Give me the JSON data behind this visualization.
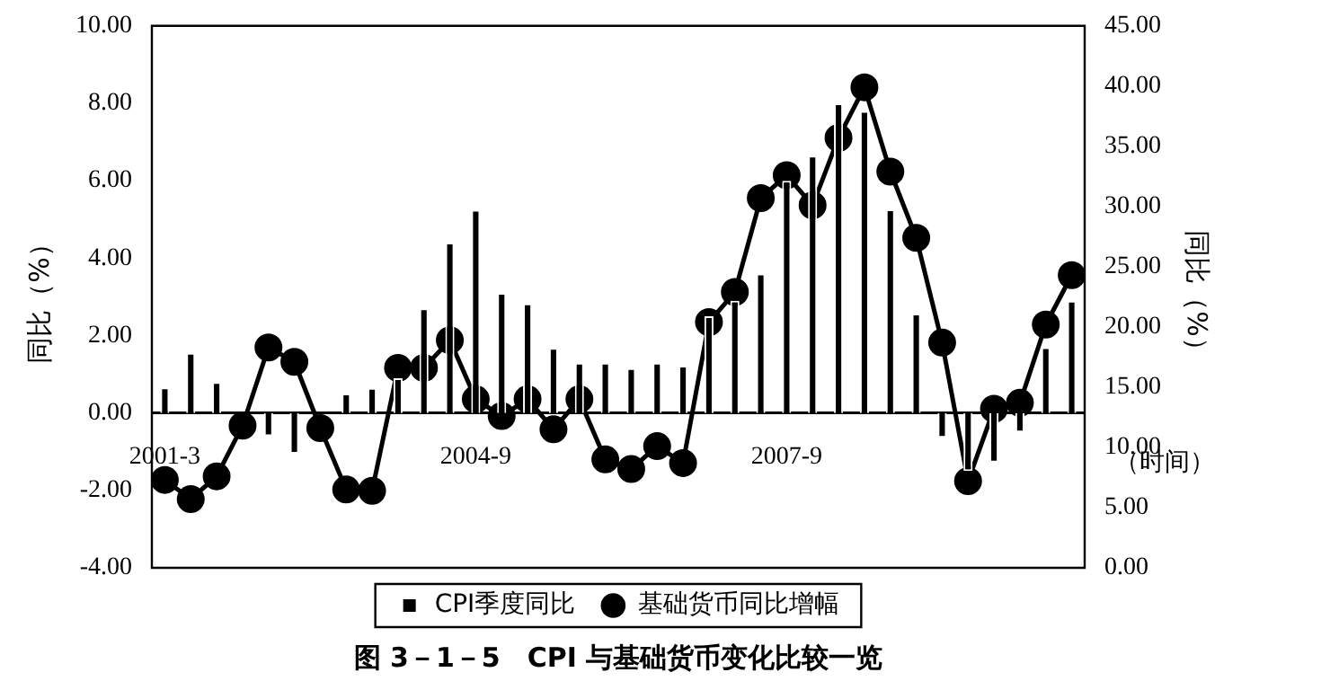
{
  "chart_data": {
    "type": "bar",
    "title": "图 3－1－5　CPI 与基础货币变化比较一览",
    "xlabel": "（时间）",
    "ylabel": "同比（%）",
    "y2label": "同比（%）",
    "categories": [
      "2001-3",
      null,
      null,
      null,
      null,
      null,
      null,
      null,
      null,
      null,
      null,
      null,
      "2004-9",
      null,
      null,
      null,
      null,
      null,
      null,
      null,
      null,
      null,
      null,
      null,
      "2007-9",
      null,
      null,
      null,
      null,
      null,
      null,
      null,
      null,
      null,
      null,
      null
    ],
    "series": [
      {
        "name": "CPI季度同比",
        "color": "#000000",
        "values": [
          0.66,
          1.55,
          0.8,
          null,
          -0.6,
          -1.05,
          null,
          0.5,
          0.65,
          0.9,
          2.7,
          4.4,
          5.25,
          3.1,
          2.83,
          1.68,
          1.3,
          1.3,
          1.16,
          1.3,
          1.22,
          2.5,
          2.9,
          3.6,
          6.0,
          6.65,
          8.0,
          7.8,
          5.26,
          2.57,
          -0.64,
          -1.5,
          -1.28,
          -0.5,
          1.7,
          2.9
        ]
      },
      {
        "name": "基础货币同比增幅",
        "type": "line",
        "axis": "y2",
        "color": "#000000",
        "marker": "circle",
        "values": [
          7.3,
          5.7,
          7.6,
          11.8,
          18.3,
          17.1,
          11.6,
          6.5,
          6.4,
          16.6,
          16.6,
          18.9,
          14.0,
          12.6,
          14.0,
          11.5,
          14.0,
          9.0,
          8.2,
          10.1,
          8.7,
          20.4,
          22.9,
          30.7,
          32.6,
          30.1,
          35.7,
          39.9,
          32.9,
          27.4,
          18.7,
          7.2,
          13.2,
          13.7,
          20.2,
          24.3
        ]
      }
    ],
    "ylim": [
      -4,
      10
    ],
    "yticks": [
      {
        "value": -4,
        "label": "-4.00"
      },
      {
        "value": -2,
        "label": "-2.00"
      },
      {
        "value": 0,
        "label": "0.00"
      },
      {
        "value": 2,
        "label": "2.00"
      },
      {
        "value": 4,
        "label": "4.00"
      },
      {
        "value": 6,
        "label": "6.00"
      },
      {
        "value": 8,
        "label": "8.00"
      },
      {
        "value": 10,
        "label": "10.00"
      }
    ],
    "y2lim": [
      0,
      45
    ],
    "y2ticks": [
      {
        "value": 0,
        "label": "0.00"
      },
      {
        "value": 5,
        "label": "5.00"
      },
      {
        "value": 10,
        "label": "10.00"
      },
      {
        "value": 15,
        "label": "15.00"
      },
      {
        "value": 20,
        "label": "20.00"
      },
      {
        "value": 25,
        "label": "25.00"
      },
      {
        "value": 30,
        "label": "30.00"
      },
      {
        "value": 35,
        "label": "35.00"
      },
      {
        "value": 40,
        "label": "40.00"
      },
      {
        "value": 45,
        "label": "45.00"
      }
    ],
    "grid": false,
    "legend": "bottom"
  }
}
